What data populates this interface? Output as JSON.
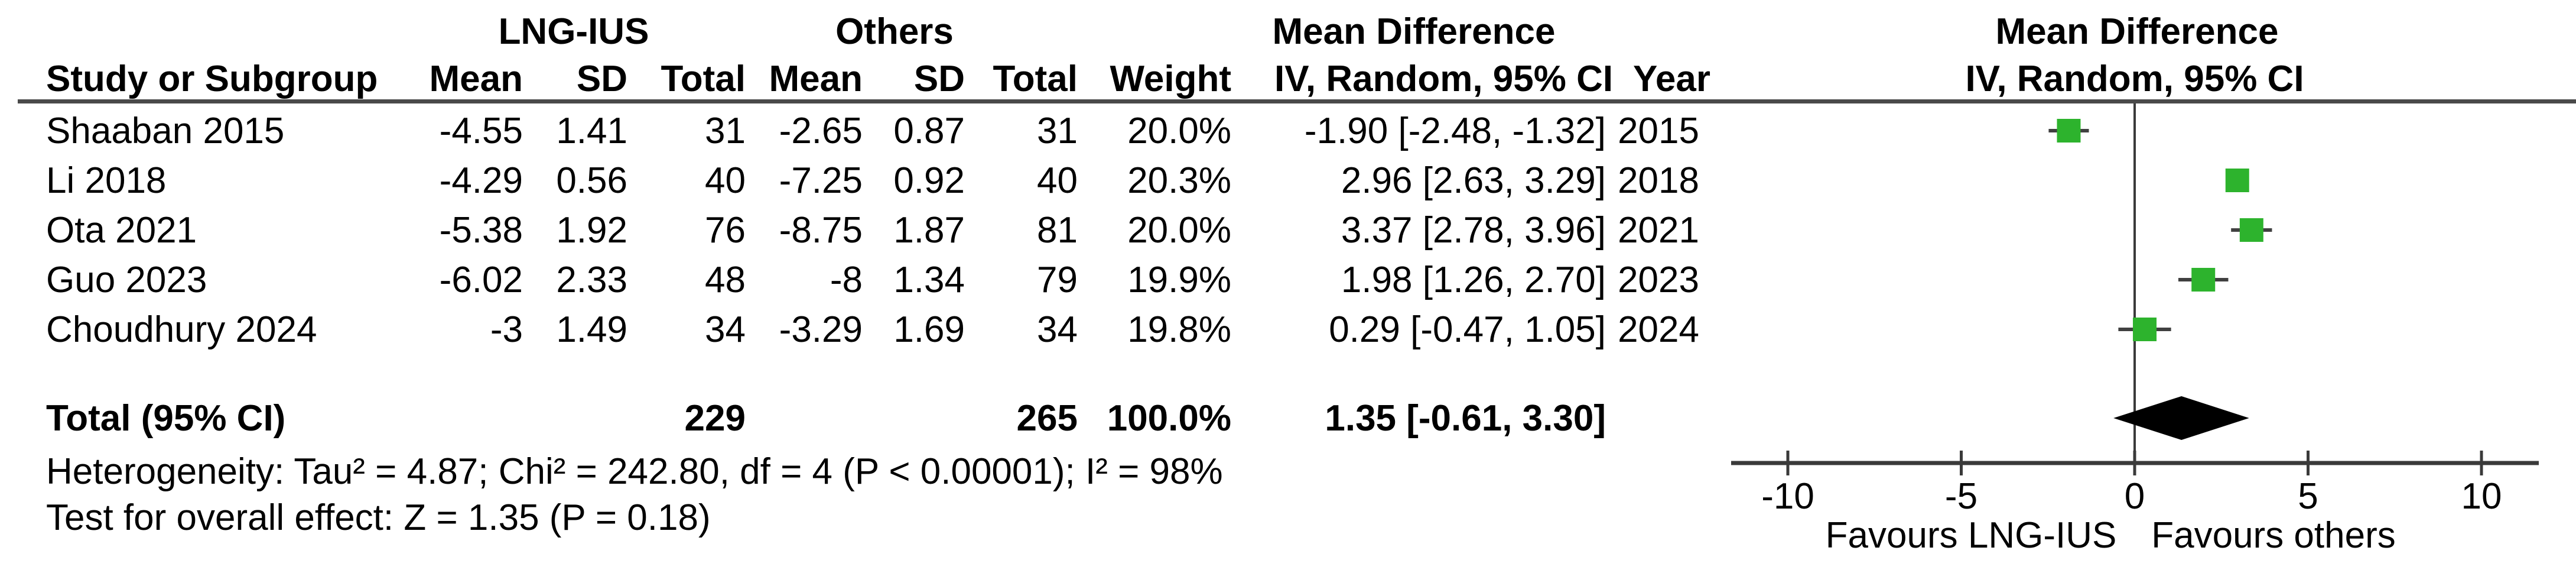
{
  "table": {
    "group_headers": {
      "group1": "LNG-IUS",
      "group2": "Others",
      "md_table": "Mean Difference",
      "md_plot": "Mean Difference"
    },
    "col_headers": {
      "study": "Study or Subgroup",
      "mean1": "Mean",
      "sd1": "SD",
      "total1": "Total",
      "mean2": "Mean",
      "sd2": "SD",
      "total2": "Total",
      "weight": "Weight",
      "ci": "IV, Random, 95% CI",
      "year": "Year",
      "ci_plot": "IV, Random, 95% CI"
    },
    "rows": [
      {
        "study": "Shaaban 2015",
        "mean1": "-4.55",
        "sd1": "1.41",
        "total1": "31",
        "mean2": "-2.65",
        "sd2": "0.87",
        "total2": "31",
        "weight": "20.0%",
        "ci": "-1.90 [-2.48, -1.32]",
        "year": "2015"
      },
      {
        "study": "Li 2018",
        "mean1": "-4.29",
        "sd1": "0.56",
        "total1": "40",
        "mean2": "-7.25",
        "sd2": "0.92",
        "total2": "40",
        "weight": "20.3%",
        "ci": "2.96 [2.63, 3.29]",
        "year": "2018"
      },
      {
        "study": "Ota 2021",
        "mean1": "-5.38",
        "sd1": "1.92",
        "total1": "76",
        "mean2": "-8.75",
        "sd2": "1.87",
        "total2": "81",
        "weight": "20.0%",
        "ci": "3.37 [2.78, 3.96]",
        "year": "2021"
      },
      {
        "study": "Guo 2023",
        "mean1": "-6.02",
        "sd1": "2.33",
        "total1": "48",
        "mean2": "-8",
        "sd2": "1.34",
        "total2": "79",
        "weight": "19.9%",
        "ci": "1.98 [1.26, 2.70]",
        "year": "2023"
      },
      {
        "study": "Choudhury 2024",
        "mean1": "-3",
        "sd1": "1.49",
        "total1": "34",
        "mean2": "-3.29",
        "sd2": "1.69",
        "total2": "34",
        "weight": "19.8%",
        "ci": "0.29 [-0.47, 1.05]",
        "year": "2024"
      }
    ],
    "total_row": {
      "label": "Total (95% CI)",
      "total1": "229",
      "total2": "265",
      "weight": "100.0%",
      "ci": "1.35 [-0.61, 3.30]"
    },
    "heterogeneity": "Heterogeneity: Tau² = 4.87; Chi² = 242.80, df = 4 (P < 0.00001); I² = 98%",
    "overall_effect": "Test for overall effect: Z = 1.35 (P = 0.18)"
  },
  "chart_data": {
    "type": "scatter",
    "subtype": "forest-plot",
    "title": "Mean Difference — IV, Random, 95% CI",
    "effect_measure": "Mean Difference, IV, Random, 95% CI",
    "x_axis": {
      "ticks": [
        -10,
        -5,
        0,
        5,
        10
      ],
      "range": [
        -11.6,
        11.6
      ],
      "label_left": "Favours LNG-IUS",
      "label_right": "Favours others"
    },
    "studies": [
      {
        "name": "Shaaban 2015",
        "md": -1.9,
        "ci_low": -2.48,
        "ci_high": -1.32,
        "weight_pct": 20.0,
        "year": 2015
      },
      {
        "name": "Li 2018",
        "md": 2.96,
        "ci_low": 2.63,
        "ci_high": 3.29,
        "weight_pct": 20.3,
        "year": 2018
      },
      {
        "name": "Ota 2021",
        "md": 3.37,
        "ci_low": 2.78,
        "ci_high": 3.96,
        "weight_pct": 20.0,
        "year": 2021
      },
      {
        "name": "Guo 2023",
        "md": 1.98,
        "ci_low": 1.26,
        "ci_high": 2.7,
        "weight_pct": 19.9,
        "year": 2023
      },
      {
        "name": "Choudhury 2024",
        "md": 0.29,
        "ci_low": -0.47,
        "ci_high": 1.05,
        "weight_pct": 19.8,
        "year": 2024
      }
    ],
    "total": {
      "md": 1.35,
      "ci_low": -0.61,
      "ci_high": 3.3
    }
  },
  "colors": {
    "marker_green": "#2db32d",
    "whisker": "#404040",
    "axis_line": "#3a3a3a",
    "header_rule": "#4a4a4a",
    "diamond": "#000000"
  }
}
